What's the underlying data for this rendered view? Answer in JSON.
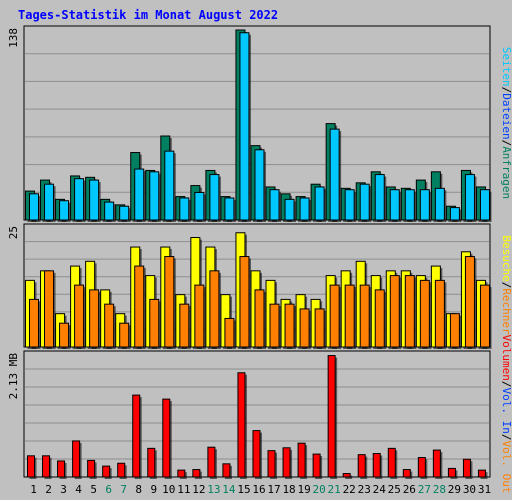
{
  "title": "Tages-Statistik im Monat August 2022",
  "colors": {
    "background": "#c0c0c0",
    "grid": "#8e8e8e",
    "title": "#0000ff",
    "anfragen": "#008060",
    "dateien": "#0040ff",
    "seiten": "#00c8ff",
    "besuche": "#ffff00",
    "rechner": "#ff8000",
    "vol_out": "#ff8000",
    "vol_in": "#0040ff",
    "volumen": "#ff0000",
    "weekend": "#008060",
    "weekday": "#000000"
  },
  "chart_data": [
    {
      "type": "bar",
      "ymax_label": "138",
      "ylim": [
        0,
        138
      ],
      "legend": {
        "anfragen": "Anfragen",
        "dateien": "Dateien",
        "seiten": "Seiten",
        "sep": "/"
      },
      "categories": [
        "1",
        "2",
        "3",
        "4",
        "5",
        "6",
        "7",
        "8",
        "9",
        "10",
        "11",
        "12",
        "13",
        "14",
        "15",
        "16",
        "17",
        "18",
        "19",
        "20",
        "21",
        "22",
        "23",
        "24",
        "25",
        "26",
        "27",
        "28",
        "29",
        "30",
        "31"
      ],
      "weekend_days": [
        "6",
        "7",
        "13",
        "14",
        "20",
        "21",
        "27",
        "28"
      ],
      "series": [
        {
          "name": "Anfragen",
          "values": [
            21,
            29,
            15,
            32,
            31,
            15,
            11,
            49,
            36,
            61,
            17,
            25,
            36,
            17,
            138,
            54,
            24,
            19,
            17,
            26,
            70,
            23,
            27,
            35,
            24,
            23,
            29,
            35,
            10,
            36,
            24
          ]
        },
        {
          "name": "Dateien",
          "values": [
            21,
            29,
            15,
            32,
            31,
            15,
            11,
            49,
            36,
            61,
            17,
            25,
            36,
            17,
            138,
            54,
            24,
            19,
            17,
            26,
            70,
            23,
            27,
            35,
            24,
            23,
            29,
            35,
            10,
            36,
            24
          ]
        },
        {
          "name": "Seiten",
          "values": [
            19,
            26,
            14,
            30,
            29,
            13,
            10,
            37,
            35,
            50,
            16,
            20,
            33,
            16,
            136,
            51,
            22,
            15,
            16,
            24,
            66,
            22,
            26,
            33,
            22,
            22,
            22,
            23,
            9,
            33,
            22
          ]
        }
      ]
    },
    {
      "type": "bar",
      "ymax_label": "25",
      "ylim": [
        0,
        25
      ],
      "legend": {
        "besuche": "Besuche",
        "rechner": "Rechner",
        "sep": "/"
      },
      "categories": [
        "1",
        "2",
        "3",
        "4",
        "5",
        "6",
        "7",
        "8",
        "9",
        "10",
        "11",
        "12",
        "13",
        "14",
        "15",
        "16",
        "17",
        "18",
        "19",
        "20",
        "21",
        "22",
        "23",
        "24",
        "25",
        "26",
        "27",
        "28",
        "29",
        "30",
        "31"
      ],
      "series": [
        {
          "name": "Besuche",
          "values": [
            14,
            16,
            7,
            17,
            18,
            12,
            7,
            21,
            15,
            21,
            11,
            23,
            21,
            11,
            24,
            16,
            14,
            10,
            11,
            10,
            15,
            16,
            18,
            15,
            16,
            16,
            15,
            17,
            7,
            20,
            14
          ]
        },
        {
          "name": "Rechner",
          "values": [
            10,
            16,
            5,
            13,
            12,
            9,
            5,
            17,
            10,
            19,
            9,
            13,
            16,
            6,
            19,
            12,
            9,
            9,
            8,
            8,
            13,
            13,
            13,
            12,
            15,
            15,
            14,
            14,
            7,
            19,
            13
          ]
        }
      ]
    },
    {
      "type": "bar",
      "ymax_label": "2.13 MB",
      "ylim": [
        0,
        2.13
      ],
      "legend": {
        "volumen": "Volumen",
        "vol_in": "Vol. In",
        "vol_out": "Vol. Out",
        "sep": "/"
      },
      "categories": [
        "1",
        "2",
        "3",
        "4",
        "5",
        "6",
        "7",
        "8",
        "9",
        "10",
        "11",
        "12",
        "13",
        "14",
        "15",
        "16",
        "17",
        "18",
        "19",
        "20",
        "21",
        "22",
        "23",
        "24",
        "25",
        "26",
        "27",
        "28",
        "29",
        "30",
        "31"
      ],
      "series": [
        {
          "name": "Volumen",
          "values": [
            0.37,
            0.37,
            0.28,
            0.63,
            0.29,
            0.19,
            0.24,
            1.43,
            0.5,
            1.36,
            0.12,
            0.13,
            0.52,
            0.23,
            1.82,
            0.81,
            0.46,
            0.51,
            0.59,
            0.4,
            2.12,
            0.06,
            0.39,
            0.41,
            0.5,
            0.13,
            0.34,
            0.47,
            0.15,
            0.31,
            0.12
          ]
        }
      ]
    }
  ]
}
